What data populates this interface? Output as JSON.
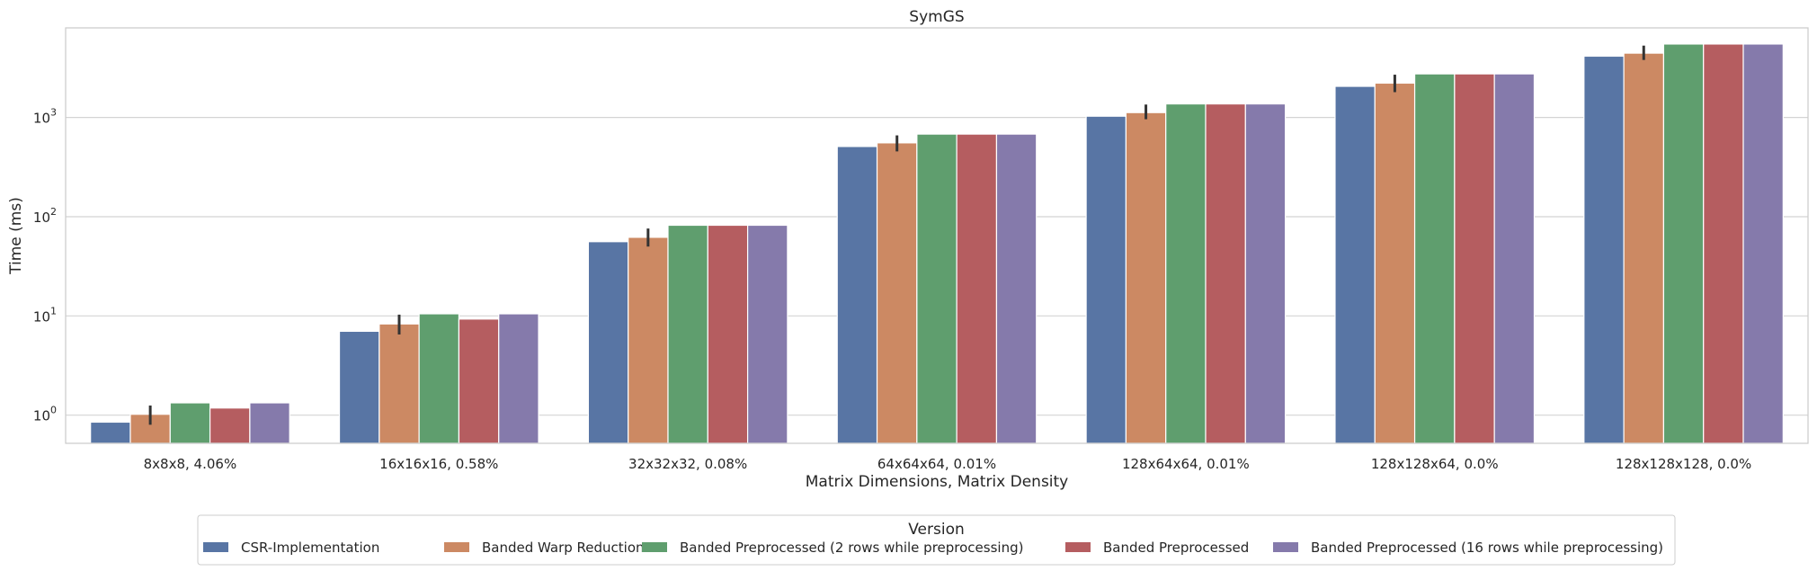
{
  "chart_data": {
    "type": "bar",
    "title": "SymGS",
    "xlabel": "Matrix Dimensions, Matrix Density",
    "ylabel": "Time (ms)",
    "yscale": "log",
    "ylim": [
      0.52,
      8000
    ],
    "grid": true,
    "categories": [
      "8x8x8, 4.06%",
      "16x16x16, 0.58%",
      "32x32x32, 0.08%",
      "64x64x64, 0.01%",
      "128x64x64, 0.01%",
      "128x128x64, 0.0%",
      "128x128x128, 0.0%"
    ],
    "y_ticks": [
      {
        "value": 1,
        "base": "10",
        "exp": "0"
      },
      {
        "value": 10,
        "base": "10",
        "exp": "1"
      },
      {
        "value": 100,
        "base": "10",
        "exp": "2"
      },
      {
        "value": 1000,
        "base": "10",
        "exp": "3"
      }
    ],
    "legend": {
      "title": "Version",
      "placement": "bottom-center"
    },
    "series": [
      {
        "name": "CSR-Implementation",
        "color": "#5875a4",
        "values": [
          0.85,
          7.0,
          56,
          510,
          1030,
          2060,
          4150
        ]
      },
      {
        "name": "Banded Warp Reduction",
        "color": "#cc8963",
        "values": [
          1.02,
          8.3,
          62,
          555,
          1120,
          2220,
          4450
        ],
        "error_bars": [
          [
            0.8,
            1.25
          ],
          [
            6.5,
            10.3
          ],
          [
            50,
            76
          ],
          [
            455,
            660
          ],
          [
            960,
            1350
          ],
          [
            1800,
            2700
          ],
          [
            3800,
            5300
          ]
        ]
      },
      {
        "name": "Banded Preprocessed (2 rows while preprocessing)",
        "color": "#5f9e6e",
        "values": [
          1.33,
          10.5,
          82,
          680,
          1370,
          2750,
          5500
        ]
      },
      {
        "name": "Banded Preprocessed",
        "color": "#b55d60",
        "values": [
          1.18,
          9.3,
          82,
          680,
          1370,
          2750,
          5500
        ]
      },
      {
        "name": "Banded Preprocessed (16 rows while preprocessing)",
        "color": "#857aab",
        "values": [
          1.33,
          10.5,
          82,
          680,
          1370,
          2750,
          5500
        ]
      }
    ]
  }
}
